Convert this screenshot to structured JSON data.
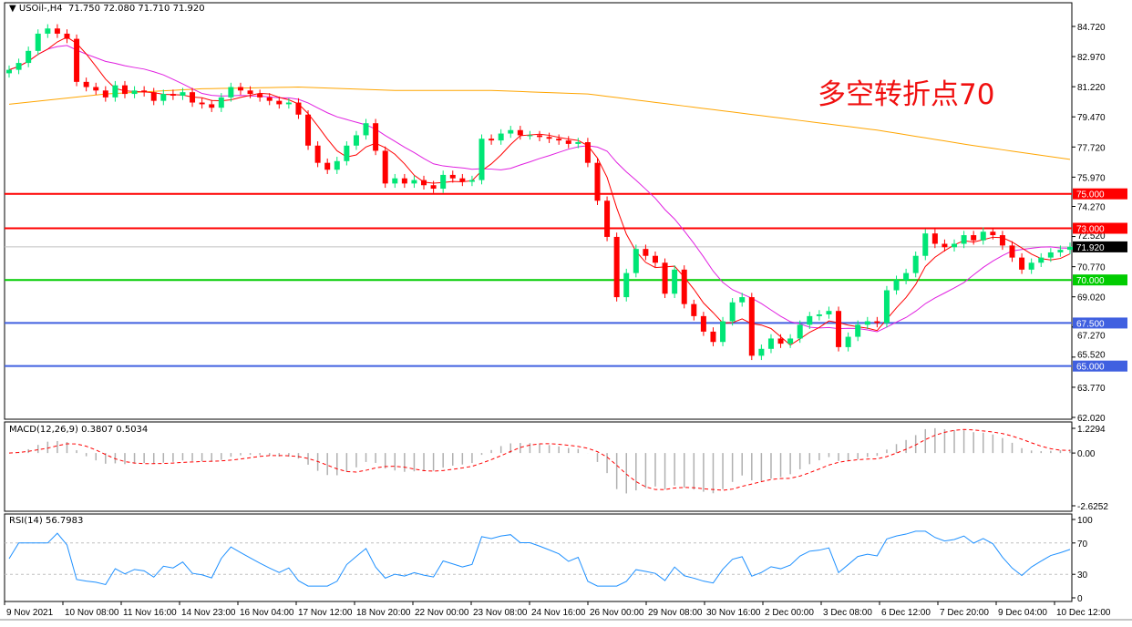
{
  "header": {
    "symbol": "USOil-,H4",
    "open": "71.750",
    "high": "72.080",
    "low": "71.710",
    "close": "71.920"
  },
  "annotation": "多空转折点70",
  "chart_data": [
    {
      "type": "candlestick",
      "title": "USOil-,H4",
      "ylim": [
        62.02,
        84.72
      ],
      "price_ticks": [
        "84.720",
        "82.970",
        "81.220",
        "79.470",
        "77.720",
        "75.970",
        "74.270",
        "72.520",
        "70.770",
        "69.020",
        "67.270",
        "65.520",
        "63.770",
        "62.020"
      ],
      "time_labels": [
        "9 Nov 2021",
        "10 Nov 08:00",
        "11 Nov 16:00",
        "14 Nov 23:00",
        "16 Nov 04:00",
        "17 Nov 12:00",
        "18 Nov 20:00",
        "22 Nov 00:00",
        "23 Nov 08:00",
        "24 Nov 16:00",
        "26 Nov 00:00",
        "29 Nov 08:00",
        "30 Nov 16:00",
        "2 Dec 00:00",
        "3 Dec 08:00",
        "6 Dec 12:00",
        "7 Dec 20:00",
        "9 Dec 04:00",
        "10 Dec 12:00"
      ],
      "close": [
        82.2,
        82.6,
        83.3,
        84.3,
        84.6,
        84.3,
        84.0,
        81.5,
        81.2,
        81.0,
        80.6,
        81.3,
        80.8,
        81.0,
        80.9,
        80.4,
        80.8,
        80.7,
        80.9,
        80.3,
        80.2,
        80.0,
        80.6,
        81.2,
        81.0,
        80.8,
        80.6,
        80.4,
        80.2,
        80.3,
        79.6,
        77.8,
        76.8,
        76.4,
        76.9,
        77.8,
        78.4,
        79.1,
        77.5,
        75.6,
        75.9,
        75.6,
        75.8,
        75.5,
        75.3,
        76.1,
        75.9,
        75.7,
        75.8,
        78.2,
        78.1,
        78.5,
        78.7,
        78.4,
        78.4,
        78.3,
        78.2,
        78.1,
        77.9,
        78.0,
        76.8,
        74.6,
        72.5,
        69.0,
        70.4,
        71.8,
        71.4,
        71.0,
        69.2,
        70.6,
        68.6,
        67.9,
        67.0,
        66.4,
        67.6,
        68.7,
        69.0,
        65.6,
        66.0,
        66.6,
        66.3,
        66.6,
        67.4,
        67.9,
        68.0,
        68.2,
        66.1,
        66.7,
        67.4,
        67.6,
        67.5,
        69.4,
        70.0,
        70.4,
        71.4,
        72.7,
        72.1,
        71.9,
        72.1,
        72.6,
        72.3,
        72.8,
        72.6,
        72.0,
        71.3,
        70.6,
        71.0,
        71.3,
        71.6,
        71.75,
        71.92
      ],
      "ma_long": [
        80.2,
        80.8,
        81.1,
        81.2,
        81.0,
        81.0,
        80.8,
        80.1,
        79.4,
        78.7,
        77.8,
        77.0
      ],
      "up_color": "#00e676",
      "down_color": "#ff0000",
      "ma_fast_color": "#ff0000",
      "ma_mid_color": "#e020e0",
      "ma_long_color": "#ffa500",
      "current_price": "71.920",
      "levels": [
        {
          "value": 75.0,
          "label": "75.000",
          "color": "#ff0000"
        },
        {
          "value": 73.0,
          "label": "73.000",
          "color": "#ff0000"
        },
        {
          "value": 70.0,
          "label": "70.000",
          "color": "#00cc00"
        },
        {
          "value": 67.5,
          "label": "67.500",
          "color": "#4060e0"
        },
        {
          "value": 65.0,
          "label": "65.000",
          "color": "#4060e0"
        }
      ]
    },
    {
      "type": "bar",
      "title": "MACD(12,26,9) 0.3807 0.5034",
      "ylim": [
        -2.6252,
        1.2294
      ],
      "ticks": [
        "1.2294",
        "0.00",
        "-2.6252"
      ]
    },
    {
      "type": "line",
      "title": "RSI(14) 56.7983",
      "ylim": [
        0,
        100
      ],
      "ticks": [
        "100",
        "70",
        "30",
        "0"
      ]
    }
  ]
}
